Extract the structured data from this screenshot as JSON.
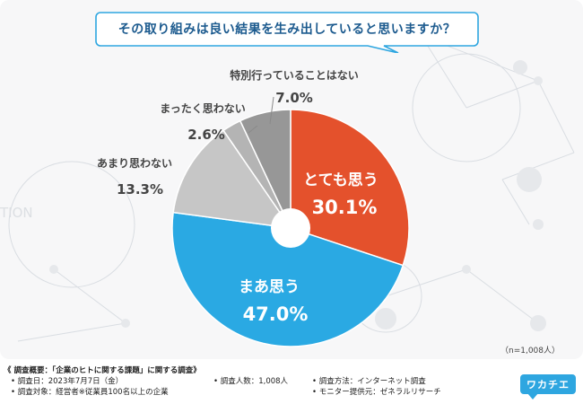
{
  "question": "その取り組みは良い結果を生み出していると思いますか？",
  "sample_size": "（n=1,008人）",
  "chart_data": {
    "type": "pie",
    "title": "その取り組みは良い結果を生み出していると思いますか？",
    "categories": [
      "とても思う",
      "まあ思う",
      "あまり思わない",
      "まったく思わない",
      "特別行っていることはない"
    ],
    "values": [
      30.1,
      47.0,
      13.3,
      2.6,
      7.0
    ],
    "labels": [
      "30.1%",
      "47.0%",
      "13.3%",
      "2.6%",
      "7.0%"
    ],
    "colors": [
      "#e4512c",
      "#2aa9e3",
      "#c6c6c6",
      "#b4b4b4",
      "#979797"
    ],
    "unit": "%"
  },
  "footer": {
    "title": "《 調査概要：「企業のヒトに関する課題」に関する調査》",
    "date": "• 調査日：2023年7月7日（金）",
    "count": "• 調査人数：1,008人",
    "method": "• 調査方法：インターネット調査",
    "target": "• 調査対象：経営者※従業員100名以上の企業",
    "provider": "• モニター提供元：ゼネラルリサーチ"
  },
  "watermark": "TION",
  "logo": "ワカチエ"
}
